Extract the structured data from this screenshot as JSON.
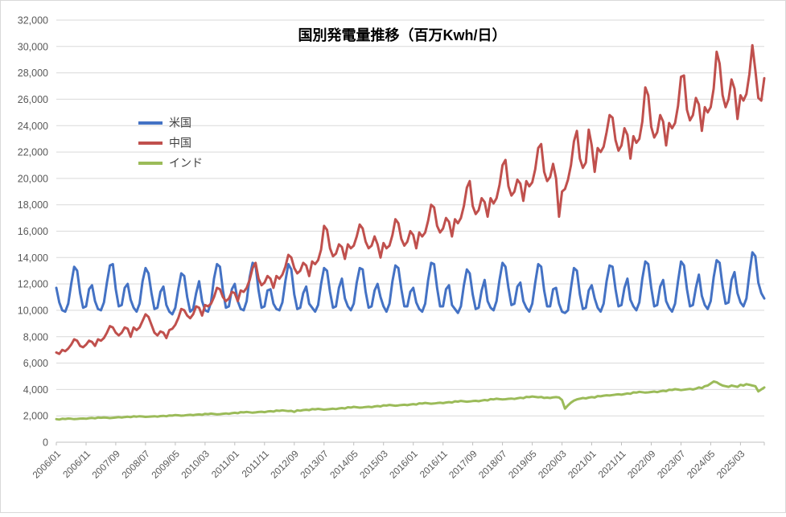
{
  "chart_data": {
    "type": "line",
    "title": "国別発電量推移（百万Kwh/日）",
    "xlabel": "",
    "ylabel": "",
    "x_frequency": "monthly",
    "x_start": "2006/01",
    "x_end": "2025/11",
    "x_tick_interval_months": 10,
    "x_tick_labels": [
      "2006/01",
      "2006/11",
      "2007/09",
      "2008/07",
      "2009/05",
      "2010/03",
      "2011/01",
      "2011/11",
      "2012/09",
      "2013/07",
      "2014/05",
      "2015/03",
      "2016/01",
      "2016/11",
      "2017/09",
      "2018/07",
      "2019/05",
      "2020/03",
      "2021/01",
      "2021/11",
      "2022/09",
      "2023/07",
      "2024/05",
      "2025/03"
    ],
    "ylim": [
      0,
      32000
    ],
    "y_tick_step": 2000,
    "y_tick_labels": [
      "0",
      "2,000",
      "4,000",
      "6,000",
      "8,000",
      "10,000",
      "12,000",
      "14,000",
      "16,000",
      "18,000",
      "20,000",
      "22,000",
      "24,000",
      "26,000",
      "28,000",
      "30,000",
      "32,000"
    ],
    "grid": "horizontal",
    "legend_position": "inside-top-left",
    "colors": {
      "grid": "#d9d9d9",
      "axis": "#bfbfbf",
      "tick_text": "#595959",
      "title_text": "#000000"
    },
    "series": [
      {
        "key": "usa",
        "name": "米国",
        "color": "#4472C4",
        "values": [
          11700,
          10600,
          10000,
          9900,
          10500,
          12000,
          13300,
          13000,
          11300,
          10200,
          10300,
          11600,
          11900,
          10700,
          10100,
          10000,
          10600,
          12100,
          13400,
          13500,
          11600,
          10300,
          10400,
          11700,
          12000,
          10800,
          10200,
          9900,
          10500,
          12200,
          13200,
          12800,
          11300,
          10100,
          10200,
          11400,
          11800,
          10400,
          9900,
          9700,
          10200,
          11600,
          12800,
          12600,
          11000,
          9900,
          10100,
          11300,
          12200,
          10700,
          10000,
          9900,
          10600,
          12400,
          13500,
          13300,
          11500,
          10200,
          10300,
          11600,
          12000,
          10700,
          10100,
          10000,
          10700,
          12500,
          13600,
          13400,
          11500,
          10200,
          10300,
          11500,
          11600,
          10500,
          10100,
          10000,
          10600,
          12200,
          13500,
          13100,
          11200,
          10100,
          10200,
          11300,
          11800,
          10500,
          10200,
          9900,
          10400,
          12000,
          13200,
          13000,
          11400,
          10200,
          10300,
          11700,
          12400,
          10900,
          10300,
          10000,
          10500,
          12100,
          13200,
          13100,
          11400,
          10200,
          10300,
          11500,
          12000,
          11000,
          10300,
          9900,
          10500,
          12200,
          13400,
          13200,
          11600,
          10300,
          10300,
          11400,
          11700,
          10600,
          10100,
          9900,
          10500,
          12300,
          13600,
          13500,
          11700,
          10300,
          10300,
          11600,
          11900,
          10400,
          10100,
          9800,
          10300,
          11900,
          13100,
          12800,
          11200,
          10100,
          10200,
          11500,
          12300,
          10700,
          10200,
          10000,
          10700,
          12300,
          13600,
          13300,
          11700,
          10400,
          10500,
          11800,
          12100,
          10700,
          10200,
          9900,
          10500,
          12100,
          13500,
          13300,
          11500,
          10300,
          10300,
          11600,
          11700,
          10500,
          9900,
          9800,
          10000,
          11700,
          13200,
          13000,
          11200,
          10100,
          10200,
          11500,
          11900,
          10900,
          10200,
          9900,
          10500,
          12200,
          13400,
          13300,
          11600,
          10300,
          10400,
          11700,
          12400,
          10800,
          10300,
          10000,
          10600,
          12400,
          13700,
          13500,
          11700,
          10300,
          10400,
          11800,
          12300,
          10700,
          10200,
          9900,
          10500,
          12200,
          13700,
          13400,
          11600,
          10300,
          10400,
          11700,
          12700,
          11100,
          10400,
          10100,
          10700,
          12500,
          13800,
          13600,
          11800,
          10500,
          10600,
          12300,
          12900,
          11300,
          10600,
          10300,
          10900,
          12800,
          14400,
          14100,
          12100,
          11300,
          10900
        ]
      },
      {
        "key": "china",
        "name": "中国",
        "color": "#C0504D",
        "values": [
          6800,
          6700,
          7000,
          6900,
          7100,
          7400,
          7800,
          7700,
          7300,
          7200,
          7400,
          7700,
          7600,
          7300,
          7800,
          7700,
          7900,
          8300,
          8800,
          8700,
          8300,
          8100,
          8300,
          8700,
          8600,
          8000,
          8700,
          8500,
          8700,
          9200,
          9700,
          9500,
          8900,
          8300,
          8100,
          8400,
          8300,
          7900,
          8500,
          8600,
          8900,
          9400,
          10100,
          10000,
          9600,
          9400,
          9700,
          10300,
          10200,
          9600,
          10400,
          10300,
          10500,
          11000,
          11700,
          11600,
          11000,
          10700,
          10900,
          11400,
          11300,
          10700,
          11500,
          11400,
          11700,
          12300,
          13200,
          13600,
          12400,
          11900,
          12100,
          12600,
          12400,
          11700,
          12600,
          12400,
          12700,
          13300,
          14200,
          14000,
          13200,
          12800,
          13000,
          13600,
          13400,
          12600,
          13700,
          13500,
          13800,
          14600,
          16400,
          16100,
          14700,
          14100,
          14300,
          15000,
          14800,
          13900,
          15000,
          14700,
          14900,
          15600,
          16500,
          16200,
          15200,
          14700,
          14900,
          15600,
          15000,
          14000,
          15100,
          14700,
          14900,
          15700,
          16900,
          16600,
          15400,
          14900,
          15200,
          16000,
          15700,
          14700,
          15900,
          15600,
          15900,
          16800,
          18000,
          17800,
          16400,
          15900,
          16200,
          17000,
          16700,
          15600,
          16900,
          16600,
          17000,
          17900,
          19300,
          19800,
          17900,
          17300,
          17600,
          18500,
          18200,
          17100,
          18500,
          18100,
          18500,
          19500,
          21000,
          21400,
          19400,
          18700,
          19000,
          19900,
          19600,
          18300,
          19800,
          19400,
          19700,
          20700,
          22300,
          22600,
          20500,
          19800,
          20100,
          21100,
          20000,
          17100,
          19000,
          19200,
          19900,
          21000,
          22800,
          23600,
          21500,
          20800,
          21200,
          23700,
          22500,
          20500,
          22300,
          22000,
          22400,
          23500,
          24800,
          24600,
          22900,
          22100,
          22500,
          23800,
          23300,
          21500,
          23200,
          22700,
          23000,
          24300,
          26900,
          26300,
          23900,
          23100,
          23500,
          24800,
          24300,
          22500,
          24200,
          23800,
          24200,
          25500,
          27700,
          27800,
          25200,
          24400,
          24800,
          26100,
          25600,
          23600,
          25400,
          25000,
          25400,
          26800,
          29600,
          28700,
          26300,
          25400,
          26000,
          27500,
          26800,
          24500,
          26300,
          25900,
          26400,
          27900,
          30100,
          28200,
          26100,
          25900,
          27600
        ]
      },
      {
        "key": "india",
        "name": "インド",
        "color": "#9BBB59",
        "values": [
          1750,
          1720,
          1780,
          1760,
          1800,
          1780,
          1750,
          1770,
          1790,
          1800,
          1780,
          1820,
          1840,
          1810,
          1870,
          1850,
          1880,
          1860,
          1830,
          1850,
          1880,
          1900,
          1870,
          1910,
          1930,
          1900,
          1960,
          1940,
          1970,
          1950,
          1920,
          1930,
          1950,
          1970,
          1940,
          1980,
          2000,
          1970,
          2030,
          2020,
          2060,
          2040,
          2010,
          2030,
          2060,
          2080,
          2050,
          2090,
          2110,
          2080,
          2150,
          2130,
          2170,
          2140,
          2110,
          2130,
          2160,
          2180,
          2150,
          2200,
          2230,
          2200,
          2280,
          2260,
          2300,
          2270,
          2240,
          2260,
          2290,
          2310,
          2280,
          2330,
          2350,
          2320,
          2400,
          2380,
          2420,
          2390,
          2360,
          2380,
          2300,
          2420,
          2390,
          2440,
          2460,
          2430,
          2510,
          2490,
          2530,
          2500,
          2470,
          2490,
          2520,
          2540,
          2510,
          2560,
          2590,
          2560,
          2650,
          2630,
          2680,
          2650,
          2620,
          2640,
          2670,
          2690,
          2660,
          2710,
          2740,
          2710,
          2800,
          2780,
          2830,
          2800,
          2770,
          2790,
          2820,
          2840,
          2810,
          2860,
          2890,
          2860,
          2950,
          2930,
          2980,
          2950,
          2920,
          2940,
          2970,
          2990,
          2960,
          3010,
          3040,
          3010,
          3100,
          3080,
          3130,
          3100,
          3070,
          3090,
          3120,
          3140,
          3110,
          3160,
          3200,
          3170,
          3270,
          3250,
          3300,
          3270,
          3240,
          3260,
          3290,
          3310,
          3280,
          3330,
          3370,
          3340,
          3440,
          3420,
          3470,
          3440,
          3410,
          3430,
          3360,
          3380,
          3350,
          3400,
          3420,
          3390,
          3200,
          2550,
          2800,
          3000,
          3150,
          3250,
          3300,
          3350,
          3320,
          3380,
          3420,
          3390,
          3500,
          3480,
          3530,
          3560,
          3540,
          3580,
          3610,
          3630,
          3600,
          3650,
          3700,
          3670,
          3780,
          3760,
          3820,
          3790,
          3760,
          3780,
          3810,
          3840,
          3800,
          3860,
          3900,
          3870,
          3980,
          3960,
          4020,
          3990,
          3950,
          3980,
          4010,
          4040,
          4000,
          4060,
          4150,
          4100,
          4250,
          4300,
          4450,
          4600,
          4550,
          4400,
          4300,
          4250,
          4200,
          4300,
          4250,
          4200,
          4350,
          4300,
          4400,
          4350,
          4300,
          4250,
          3850,
          4000,
          4150
        ]
      }
    ]
  }
}
